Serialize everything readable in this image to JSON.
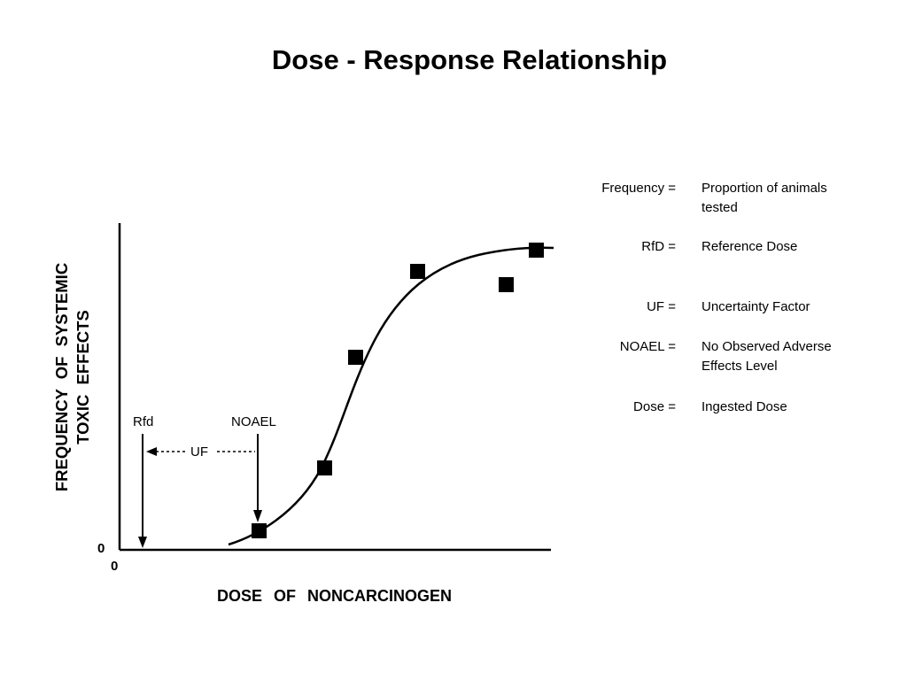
{
  "title": "Dose - Response Relationship",
  "diagram": {
    "y_axis_label_line1": "FREQUENCY  OF  SYSTEMIC",
    "y_axis_label_line2": "TOXIC  EFFECTS",
    "x_axis_label": "DOSE  OF  NONCARCINOGEN",
    "y_zero": "0",
    "x_zero": "0",
    "rfd_label": "Rfd",
    "noael_label": "NOAEL",
    "uf_label": "UF"
  },
  "legend": [
    {
      "term": "Frequency =",
      "definition": "Proportion of animals tested"
    },
    {
      "term": "RfD =",
      "definition": "Reference Dose"
    },
    {
      "term": "UF =",
      "definition": "Uncertainty Factor"
    },
    {
      "term": "NOAEL =",
      "definition": "No Observed Adverse Effects Level"
    },
    {
      "term": "Dose =",
      "definition": "Ingested Dose"
    }
  ]
}
